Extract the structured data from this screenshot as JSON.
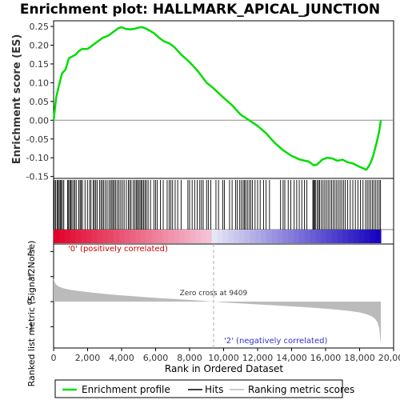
{
  "chart_data": {
    "type": "line",
    "title": "Enrichment plot: HALLMARK_APICAL_JUNCTION",
    "es_panel": {
      "ylabel": "Enrichment score (ES)",
      "ylim": [
        -0.155,
        0.265
      ],
      "yticks": [
        -0.15,
        -0.1,
        -0.05,
        0.0,
        0.05,
        0.1,
        0.15,
        0.2,
        0.25
      ],
      "ytick_labels": [
        "-0.15",
        "-0.10",
        "-0.05",
        "0.00",
        "0.05",
        "0.10",
        "0.15",
        "0.20",
        "0.25"
      ],
      "series": [
        {
          "name": "Enrichment profile",
          "color": "#00dd00",
          "x": [
            0,
            150,
            300,
            500,
            700,
            900,
            1100,
            1300,
            1500,
            1700,
            2000,
            2300,
            2600,
            2900,
            3200,
            3500,
            3800,
            4000,
            4200,
            4500,
            4800,
            5000,
            5200,
            5400,
            5600,
            5900,
            6200,
            6500,
            6800,
            7100,
            7500,
            8000,
            8500,
            9000,
            9409,
            10000,
            10500,
            11000,
            11500,
            12000,
            12500,
            13000,
            13500,
            14000,
            14500,
            15000,
            15300,
            15500,
            15800,
            16100,
            16400,
            16700,
            17000,
            17300,
            17600,
            17900,
            18200,
            18400,
            18600,
            18800,
            19000,
            19150,
            19250
          ],
          "y": [
            0.0,
            0.06,
            0.09,
            0.125,
            0.135,
            0.165,
            0.17,
            0.175,
            0.185,
            0.19,
            0.19,
            0.2,
            0.21,
            0.22,
            0.225,
            0.235,
            0.245,
            0.248,
            0.244,
            0.242,
            0.244,
            0.247,
            0.248,
            0.245,
            0.24,
            0.232,
            0.22,
            0.21,
            0.205,
            0.195,
            0.175,
            0.155,
            0.13,
            0.1,
            0.085,
            0.06,
            0.04,
            0.015,
            0.0,
            -0.015,
            -0.035,
            -0.06,
            -0.08,
            -0.095,
            -0.105,
            -0.11,
            -0.12,
            -0.118,
            -0.105,
            -0.1,
            -0.102,
            -0.108,
            -0.105,
            -0.112,
            -0.115,
            -0.122,
            -0.128,
            -0.132,
            -0.118,
            -0.095,
            -0.06,
            -0.03,
            0.0
          ]
        }
      ],
      "zero_line": true
    },
    "hits_panel": {
      "legend_name": "Hits",
      "hit_ranks": [
        40,
        120,
        200,
        260,
        330,
        390,
        450,
        520,
        600,
        820,
        880,
        950,
        1010,
        1080,
        1170,
        1250,
        1330,
        1480,
        1560,
        1620,
        1700,
        1850,
        1990,
        2120,
        2200,
        2330,
        2400,
        2480,
        2560,
        2700,
        2790,
        2870,
        2950,
        3050,
        3150,
        3260,
        3350,
        3430,
        3500,
        3580,
        3660,
        3760,
        3850,
        3950,
        4050,
        4150,
        4280,
        4400,
        4480,
        4560,
        4680,
        4780,
        4860,
        4930,
        5000,
        5080,
        5150,
        5220,
        5300,
        5380,
        5460,
        5560,
        5700,
        5900,
        6000,
        6100,
        6280,
        6450,
        6680,
        6800,
        6900,
        7000,
        7150,
        7300,
        7500,
        7900,
        8000,
        8150,
        8300,
        8450,
        8600,
        8700,
        8800,
        9000,
        9100,
        9250,
        9550,
        9700,
        9950,
        10050,
        10350,
        10500,
        10700,
        10800,
        10950,
        11050,
        11150,
        11230,
        11300,
        11400,
        11500,
        11600,
        11700,
        11850,
        12000,
        12150,
        12350,
        12500,
        12700,
        13350,
        13500,
        13600,
        13800,
        13950,
        14150,
        14300,
        14450,
        14600,
        14750,
        14900,
        15250,
        15300,
        15350,
        15400,
        15500,
        15580,
        15650,
        15750,
        15850,
        15950,
        16050,
        16150,
        16250,
        16350,
        16450,
        16550,
        16650,
        16750,
        16850,
        16950,
        17050,
        17150,
        17300,
        17450,
        17600,
        17750,
        17900,
        18050,
        18200,
        18350,
        18450,
        18550,
        18650,
        18750,
        18850,
        18950,
        19050,
        19150,
        19230
      ],
      "color_bar": {
        "pos_label": "'0' (positively correlated)",
        "neg_label": "'2' (negatively correlated)"
      }
    },
    "metric_panel": {
      "ylabel": "Ranked list metric (Signal2Noise)",
      "ylim": [
        -1.85,
        2.3
      ],
      "yticks": [
        -1,
        0,
        1,
        2
      ],
      "ytick_labels": [
        "-1",
        "0",
        "1",
        "2"
      ],
      "legend_name": "Ranking metric scores",
      "fill_color": "#bbbbbb",
      "x": [
        0,
        50,
        150,
        300,
        600,
        1000,
        2000,
        3000,
        4000,
        5000,
        6000,
        7000,
        8000,
        9000,
        9409,
        10000,
        11000,
        12000,
        13000,
        14000,
        15000,
        16000,
        17000,
        17500,
        18000,
        18400,
        18700,
        18900,
        19050,
        19150,
        19200,
        19250
      ],
      "y": [
        0.95,
        0.8,
        0.68,
        0.6,
        0.53,
        0.47,
        0.38,
        0.31,
        0.25,
        0.2,
        0.15,
        0.11,
        0.07,
        0.02,
        0.0,
        -0.03,
        -0.07,
        -0.11,
        -0.15,
        -0.19,
        -0.23,
        -0.28,
        -0.34,
        -0.38,
        -0.43,
        -0.5,
        -0.58,
        -0.68,
        -0.82,
        -1.05,
        -1.4,
        -1.72
      ],
      "zero_cross_text": "Zero cross at 9409",
      "zero_cross_rank": 9409
    },
    "x_axis": {
      "xlabel": "Rank in Ordered Dataset",
      "xlim": [
        0,
        20000
      ],
      "xticks": [
        0,
        2000,
        4000,
        6000,
        8000,
        10000,
        12000,
        14000,
        16000,
        18000,
        20000
      ],
      "xtick_labels": [
        "0",
        "2,000",
        "4,000",
        "6,000",
        "8,000",
        "10,000",
        "12,000",
        "14,000",
        "16,000",
        "18,000",
        "20,000"
      ],
      "n_genes": 19250
    },
    "legend": {
      "entries": [
        {
          "label": "Enrichment profile",
          "color": "#00dd00"
        },
        {
          "label": "Hits",
          "color": "#000000"
        },
        {
          "label": "Ranking metric scores",
          "color": "#bbbbbb"
        }
      ]
    }
  }
}
